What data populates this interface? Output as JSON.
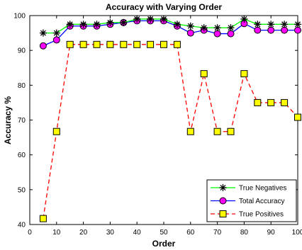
{
  "chart_data": {
    "type": "line",
    "title": "Accuracy with Varying Order",
    "xlabel": "Order",
    "ylabel": "Accuracy %",
    "xlim": [
      0,
      100
    ],
    "ylim": [
      40,
      100
    ],
    "xticks": [
      0,
      10,
      20,
      30,
      40,
      50,
      60,
      70,
      80,
      90,
      100
    ],
    "yticks": [
      40,
      50,
      60,
      70,
      80,
      90,
      100
    ],
    "grid": false,
    "legend_position": "bottom-right",
    "x": [
      5,
      10,
      15,
      20,
      25,
      30,
      35,
      40,
      45,
      50,
      55,
      60,
      65,
      70,
      75,
      80,
      85,
      90,
      95,
      100
    ],
    "series": [
      {
        "name": "True Negatives",
        "color": "#00ff00",
        "marker": "asterisk",
        "marker_color": "#000000",
        "line_style": "solid",
        "values": [
          95,
          95,
          97.5,
          97.5,
          97.5,
          98,
          98,
          99,
          99,
          99,
          97.5,
          97,
          96.5,
          96.5,
          96.5,
          99,
          97.5,
          97.5,
          97.5,
          97.5
        ]
      },
      {
        "name": "Total Accuracy",
        "color": "#0000ff",
        "marker": "circle",
        "marker_color": "#ff00ff",
        "line_style": "solid",
        "values": [
          91.3,
          93,
          97,
          97,
          97,
          97.5,
          98,
          98.5,
          98.5,
          98.5,
          97,
          95,
          95.8,
          94.8,
          94.8,
          97.7,
          95.8,
          95.8,
          95.8,
          95.8
        ]
      },
      {
        "name": "True Positives",
        "color": "#ff0000",
        "marker": "square",
        "marker_color": "#ffff00",
        "line_style": "dashed",
        "values": [
          41.7,
          66.7,
          91.7,
          91.7,
          91.7,
          91.7,
          91.7,
          91.7,
          91.7,
          91.7,
          91.7,
          66.7,
          83.3,
          66.7,
          66.7,
          83.3,
          75,
          75,
          75,
          70.8
        ]
      }
    ]
  }
}
